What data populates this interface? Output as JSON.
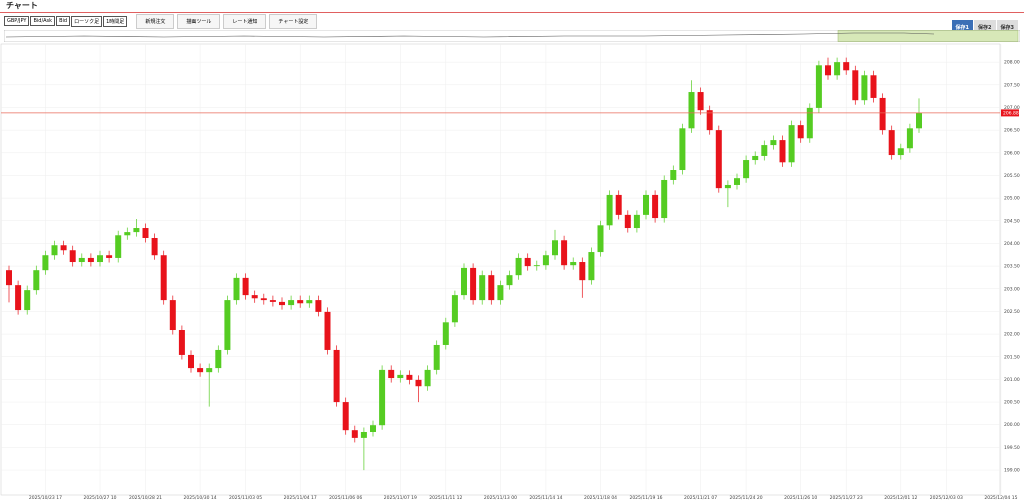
{
  "header": {
    "title": "チャート"
  },
  "toolbar": {
    "selects": [
      "GBP/JPY",
      "Bid/Ask",
      "Bid",
      "ローソク足",
      "1時間足"
    ],
    "buttons": [
      "新規注文",
      "描画ツール",
      "レート通知",
      "チャート設定"
    ],
    "saves": [
      "保存1",
      "保存2",
      "保存3"
    ]
  },
  "chart_data": {
    "type": "candlestick",
    "up_color": "#55cc22",
    "down_color": "#e8131b",
    "grid": true,
    "ylim": [
      198.45,
      208.4
    ],
    "yticks": [
      {
        "value": 199,
        "label": "199.00"
      },
      {
        "value": 199.5,
        "label": "199.50"
      },
      {
        "value": 200,
        "label": "200.00"
      },
      {
        "value": 200.5,
        "label": "200.50"
      },
      {
        "value": 201,
        "label": "201.00"
      },
      {
        "value": 201.5,
        "label": "201.50"
      },
      {
        "value": 202,
        "label": "202.00"
      },
      {
        "value": 202.5,
        "label": "202.50"
      },
      {
        "value": 203,
        "label": "203.00"
      },
      {
        "value": 203.5,
        "label": "203.50"
      },
      {
        "value": 204,
        "label": "204.00"
      },
      {
        "value": 204.5,
        "label": "204.50"
      },
      {
        "value": 205,
        "label": "205.00"
      },
      {
        "value": 205.5,
        "label": "205.50"
      },
      {
        "value": 206,
        "label": "206.00"
      },
      {
        "value": 206.5,
        "label": "206.50"
      },
      {
        "value": 207,
        "label": "207.00"
      },
      {
        "value": 207.5,
        "label": "207.50"
      },
      {
        "value": 208,
        "label": "208.00"
      }
    ],
    "last_price": 206.88,
    "categories": [
      null,
      null,
      null,
      null,
      "2025/10/23 17",
      null,
      null,
      null,
      null,
      null,
      "2025/10/27 10",
      null,
      null,
      null,
      null,
      "2025/10/28 21",
      null,
      null,
      null,
      null,
      null,
      "2025/10/30 14",
      null,
      null,
      null,
      null,
      "2025/11/03 05",
      null,
      null,
      null,
      null,
      null,
      "2025/11/04 17",
      null,
      null,
      null,
      null,
      "2025/11/06 06",
      null,
      null,
      null,
      null,
      null,
      "2025/11/07 19",
      null,
      null,
      null,
      null,
      "2025/11/11 12",
      null,
      null,
      null,
      null,
      null,
      "2025/11/13 00",
      null,
      null,
      null,
      null,
      "2025/11/14 14",
      null,
      null,
      null,
      null,
      null,
      "2025/11/18 04",
      null,
      null,
      null,
      null,
      "2025/11/19 16",
      null,
      null,
      null,
      null,
      null,
      "2025/11/21 07",
      null,
      null,
      null,
      null,
      "2025/11/24 20",
      null,
      null,
      null,
      null,
      null,
      "2025/11/26 10",
      null,
      null,
      null,
      null,
      "2025/11/27 23",
      null,
      null,
      null,
      null,
      null,
      "2025/12/01 12",
      null,
      null,
      null,
      null,
      "2025/12/03 03",
      null,
      null,
      null,
      null,
      null,
      "2025/12/04 15"
    ],
    "open": [
      203.41,
      203.08,
      202.53,
      202.97,
      203.41,
      203.74,
      203.96,
      203.85,
      203.59,
      203.68,
      203.59,
      203.74,
      203.68,
      204.18,
      204.25,
      204.34,
      204.12,
      203.74,
      202.75,
      202.09,
      201.54,
      201.25,
      201.16,
      201.25,
      201.65,
      202.75,
      203.24,
      202.86,
      202.79,
      202.75,
      202.71,
      202.64,
      202.75,
      202.68,
      202.75,
      202.49,
      201.65,
      200.5,
      199.88,
      199.71,
      199.84,
      199.99,
      201.21,
      201.03,
      201.1,
      200.99,
      200.85,
      201.21,
      201.76,
      202.26,
      202.86,
      203.46,
      202.75,
      203.3,
      202.75,
      203.08,
      203.3,
      203.68,
      203.5,
      203.52,
      203.74,
      204.07,
      203.52,
      203.59,
      203.19,
      203.81,
      204.4,
      205.07,
      204.63,
      204.34,
      204.63,
      205.07,
      204.56,
      205.4,
      205.62,
      206.54,
      207.34,
      206.94,
      206.5,
      205.22,
      205.29,
      205.44,
      205.84,
      205.93,
      206.17,
      206.28,
      205.79,
      206.61,
      206.32,
      206.99,
      207.93,
      207.71,
      208,
      207.82,
      207.16,
      207.71,
      207.21,
      206.5,
      205.95,
      206.1,
      206.54,
      null,
      null,
      null,
      null,
      null,
      null,
      null,
      null,
      null
    ],
    "high": [
      203.51,
      203.18,
      203.07,
      203.51,
      203.84,
      204.06,
      204.06,
      203.95,
      203.78,
      203.78,
      203.84,
      203.84,
      204.28,
      204.35,
      204.54,
      204.44,
      204.22,
      203.84,
      202.85,
      202.19,
      201.64,
      201.35,
      201.35,
      201.75,
      202.85,
      203.34,
      203.34,
      202.96,
      202.89,
      202.85,
      202.81,
      202.85,
      202.85,
      202.85,
      202.85,
      202.59,
      201.75,
      200.6,
      199.98,
      199.94,
      200.09,
      201.31,
      201.31,
      201.2,
      201.2,
      201.09,
      201.31,
      201.86,
      202.36,
      202.96,
      203.56,
      203.56,
      203.4,
      203.4,
      203.18,
      203.4,
      203.78,
      203.78,
      203.62,
      203.84,
      204.3,
      204.17,
      203.69,
      203.69,
      203.91,
      204.5,
      205.17,
      205.17,
      204.73,
      204.73,
      205.17,
      205.17,
      205.5,
      205.72,
      206.64,
      207.6,
      207.44,
      207.04,
      206.6,
      205.39,
      205.54,
      205.94,
      206.03,
      206.27,
      206.38,
      206.38,
      206.71,
      206.71,
      207.09,
      208.03,
      208.1,
      208.1,
      208.1,
      207.92,
      207.81,
      207.81,
      207.31,
      206.6,
      206.2,
      206.64,
      207.2,
      null,
      null,
      null,
      null,
      null,
      null,
      null,
      null,
      null
    ],
    "low": [
      202.7,
      202.43,
      202.43,
      202.87,
      203.31,
      203.64,
      203.75,
      203.49,
      203.49,
      203.49,
      203.49,
      203.58,
      203.58,
      204.08,
      204.15,
      204.02,
      203.64,
      202.65,
      201.99,
      201.44,
      201.15,
      201.06,
      200.4,
      201.15,
      201.55,
      202.65,
      202.76,
      202.69,
      202.65,
      202.61,
      202.54,
      202.54,
      202.58,
      202.58,
      202.39,
      201.55,
      200.4,
      199.78,
      199.61,
      199,
      199.74,
      199.89,
      200.93,
      200.93,
      200.89,
      200.5,
      200.75,
      201.11,
      201.66,
      202.16,
      202.76,
      202.65,
      202.65,
      202.65,
      202.65,
      202.98,
      203.2,
      203.4,
      203.4,
      203.42,
      203.64,
      203.42,
      203.42,
      202.8,
      203.09,
      203.71,
      204.3,
      204.53,
      204.24,
      204.24,
      204.53,
      204.46,
      204.46,
      205.3,
      205.52,
      206.44,
      206.84,
      206.4,
      205.12,
      204.8,
      205.19,
      205.34,
      205.74,
      205.83,
      206.07,
      205.69,
      205.69,
      206.22,
      206.22,
      206.89,
      207.61,
      207.61,
      207.72,
      207.06,
      207.06,
      207.11,
      206.4,
      205.85,
      205.85,
      206,
      206.44,
      null,
      null,
      null,
      null,
      null,
      null,
      null,
      null,
      null
    ],
    "close": [
      203.08,
      202.53,
      202.97,
      203.41,
      203.74,
      203.96,
      203.85,
      203.59,
      203.68,
      203.59,
      203.74,
      203.68,
      204.18,
      204.25,
      204.34,
      204.12,
      203.74,
      202.75,
      202.09,
      201.54,
      201.25,
      201.16,
      201.25,
      201.65,
      202.75,
      203.24,
      202.86,
      202.79,
      202.75,
      202.71,
      202.64,
      202.75,
      202.68,
      202.75,
      202.49,
      201.65,
      200.5,
      199.88,
      199.71,
      199.84,
      199.99,
      201.21,
      201.03,
      201.1,
      200.99,
      200.85,
      201.21,
      201.76,
      202.26,
      202.86,
      203.46,
      202.75,
      203.3,
      202.75,
      203.08,
      203.3,
      203.68,
      203.5,
      203.52,
      203.74,
      204.07,
      203.52,
      203.59,
      203.19,
      203.81,
      204.4,
      205.07,
      204.63,
      204.34,
      204.63,
      205.07,
      204.56,
      205.4,
      205.62,
      206.54,
      207.34,
      206.94,
      206.5,
      205.22,
      205.29,
      205.44,
      205.84,
      205.93,
      206.17,
      206.28,
      205.79,
      206.61,
      206.32,
      206.99,
      207.93,
      207.71,
      208,
      207.82,
      207.16,
      207.71,
      207.21,
      206.5,
      205.95,
      206.1,
      206.54,
      206.88,
      null,
      null,
      null,
      null,
      null,
      null,
      null,
      null,
      null
    ]
  }
}
